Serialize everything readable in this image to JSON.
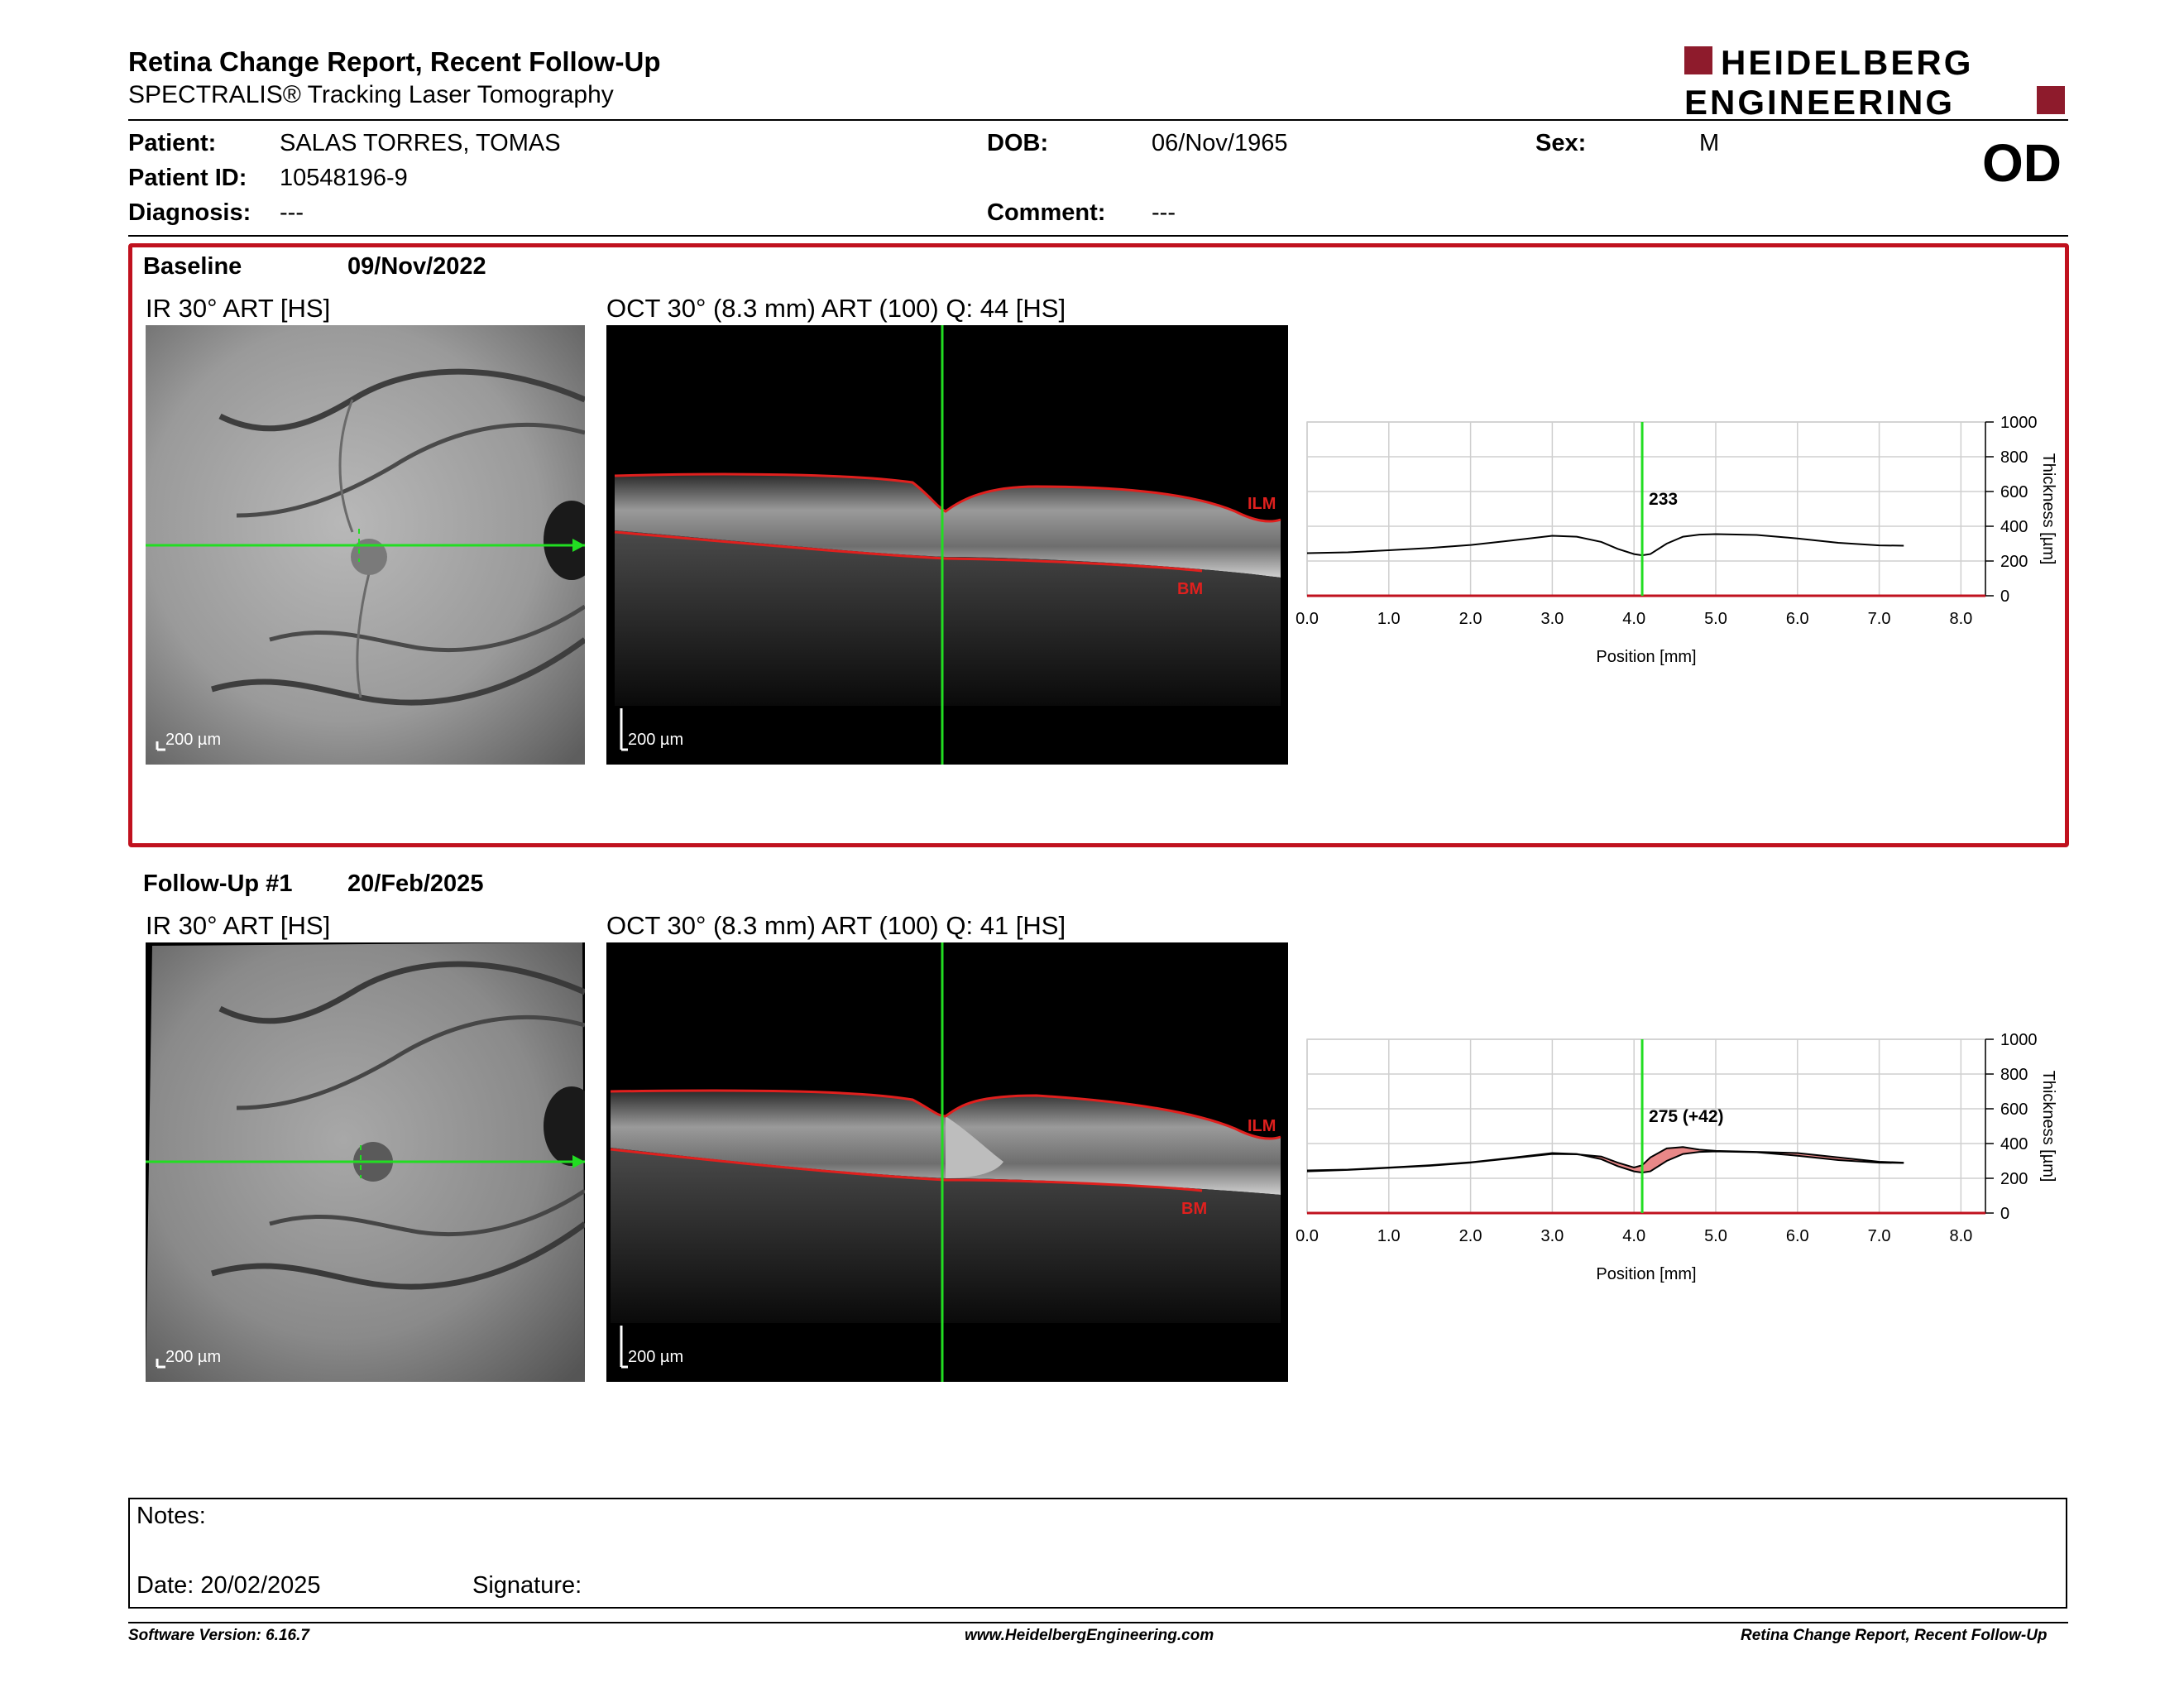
{
  "report": {
    "title": "Retina Change Report, Recent Follow-Up",
    "subtitle": "SPECTRALIS® Tracking Laser Tomography",
    "logo_line1": "HEIDELBERG",
    "logo_line2": "ENGINEERING",
    "eye": "OD"
  },
  "patient": {
    "patient_label": "Patient:",
    "patient_value": "SALAS TORRES, TOMAS",
    "id_label": "Patient ID:",
    "id_value": "10548196-9",
    "diagnosis_label": "Diagnosis:",
    "diagnosis_value": "---",
    "dob_label": "DOB:",
    "dob_value": "06/Nov/1965",
    "comment_label": "Comment:",
    "comment_value": "---",
    "sex_label": "Sex:",
    "sex_value": "M"
  },
  "colors": {
    "frame_red": "#c0111e",
    "logo_red": "#8e1b2c",
    "scan_line_green": "#22dd22",
    "segmentation_red": "#e0201e",
    "change_fill": "#e57373"
  },
  "exams": [
    {
      "label": "Baseline",
      "date": "09/Nov/2022",
      "ir_caption": "IR 30° ART [HS]",
      "oct_caption": "OCT 30° (8.3 mm) ART (100) Q: 44 [HS]",
      "scale": "200 µm",
      "ilm": "ILM",
      "bm": "BM"
    },
    {
      "label": "Follow-Up #1",
      "date": "20/Feb/2025",
      "ir_caption": "IR 30° ART [HS]",
      "oct_caption": "OCT 30° (8.3 mm) ART (100) Q: 41 [HS]",
      "scale": "200 µm",
      "ilm": "ILM",
      "bm": "BM"
    }
  ],
  "chart_data": [
    {
      "type": "line",
      "xlabel": "Position [mm]",
      "ylabel": "Thickness [µm]",
      "xlim": [
        0,
        8.3
      ],
      "ylim": [
        0,
        1000
      ],
      "xticks": [
        "0.0",
        "1.0",
        "2.0",
        "3.0",
        "4.0",
        "5.0",
        "6.0",
        "7.0",
        "8.0"
      ],
      "yticks": [
        "0",
        "200",
        "400",
        "600",
        "800",
        "1000"
      ],
      "cursor_x": 4.1,
      "cursor_label": "233",
      "series": [
        {
          "x": [
            0.0,
            0.5,
            1.0,
            1.5,
            2.0,
            2.5,
            3.0,
            3.3,
            3.6,
            3.8,
            4.0,
            4.1,
            4.2,
            4.4,
            4.6,
            4.8,
            5.0,
            5.5,
            6.0,
            6.5,
            7.0,
            7.3
          ],
          "values": [
            245,
            250,
            262,
            275,
            292,
            318,
            345,
            340,
            310,
            270,
            240,
            233,
            240,
            300,
            340,
            352,
            355,
            350,
            330,
            305,
            290,
            288
          ]
        }
      ]
    },
    {
      "type": "line",
      "xlabel": "Position [mm]",
      "ylabel": "Thickness [µm]",
      "xlim": [
        0,
        8.3
      ],
      "ylim": [
        0,
        1000
      ],
      "xticks": [
        "0.0",
        "1.0",
        "2.0",
        "3.0",
        "4.0",
        "5.0",
        "6.0",
        "7.0",
        "8.0"
      ],
      "yticks": [
        "0",
        "200",
        "400",
        "600",
        "800",
        "1000"
      ],
      "cursor_x": 4.1,
      "cursor_label": "275 (+42)",
      "series": [
        {
          "x": [
            0.0,
            0.5,
            1.0,
            1.5,
            2.0,
            2.5,
            3.0,
            3.3,
            3.6,
            3.8,
            4.0,
            4.1,
            4.2,
            4.4,
            4.6,
            4.8,
            5.0,
            5.5,
            6.0,
            6.5,
            7.0,
            7.3
          ],
          "values": [
            240,
            248,
            260,
            272,
            290,
            315,
            340,
            338,
            325,
            290,
            262,
            275,
            320,
            372,
            380,
            365,
            358,
            352,
            345,
            320,
            295,
            290
          ]
        },
        {
          "x": [
            0.0,
            0.5,
            1.0,
            1.5,
            2.0,
            2.5,
            3.0,
            3.3,
            3.6,
            3.8,
            4.0,
            4.1,
            4.2,
            4.4,
            4.6,
            4.8,
            5.0,
            5.5,
            6.0,
            6.5,
            7.0,
            7.3
          ],
          "values": [
            245,
            250,
            262,
            275,
            292,
            318,
            345,
            340,
            310,
            270,
            240,
            233,
            240,
            300,
            340,
            352,
            355,
            350,
            330,
            305,
            290,
            288
          ]
        }
      ]
    }
  ],
  "notes": {
    "notes_label": "Notes:",
    "date_label": "Date: 20/02/2025",
    "signature_label": "Signature:"
  },
  "footer": {
    "version": "Software Version: 6.16.7",
    "website": "www.HeidelbergEngineering.com",
    "report_name": "Retina Change Report, Recent Follow-Up"
  }
}
